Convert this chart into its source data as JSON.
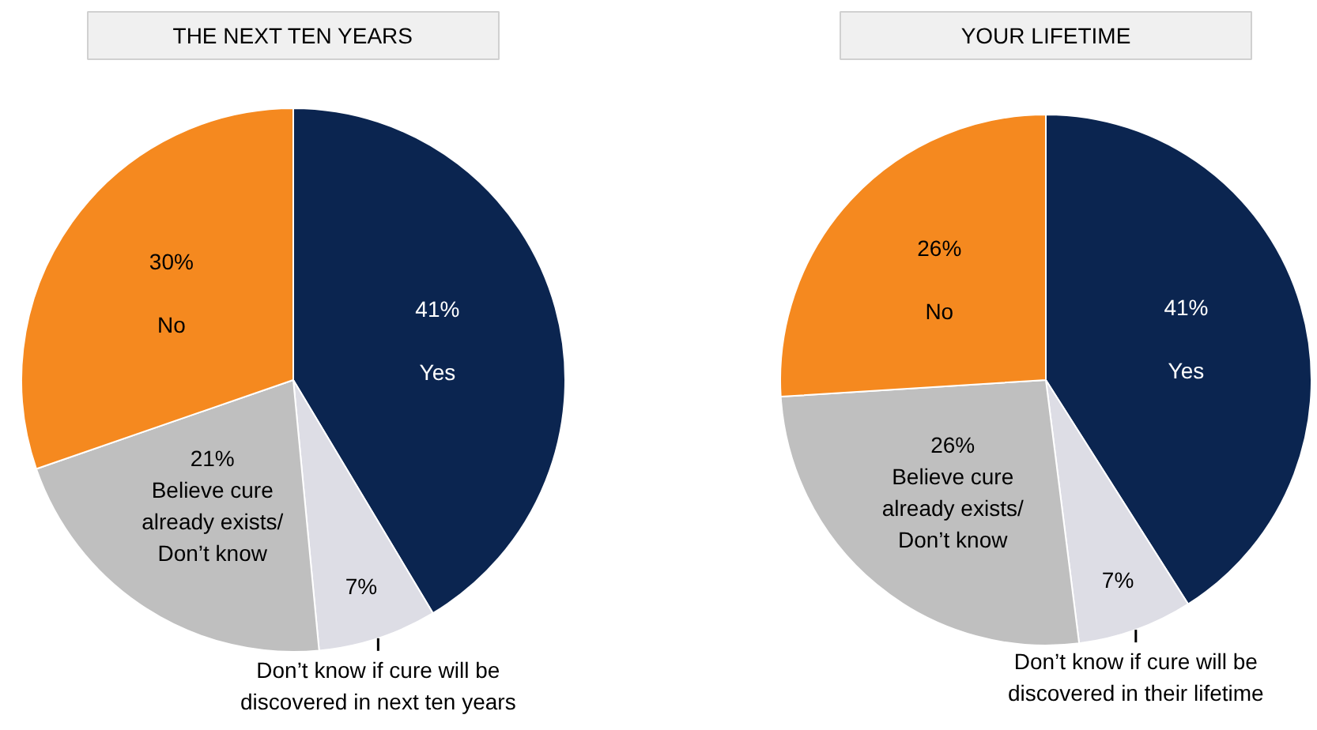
{
  "chart_data": [
    {
      "type": "pie",
      "title": "THE NEXT TEN YEARS",
      "categories": [
        "Yes",
        "Don’t know if cure will be discovered in next ten years",
        "Believe cure already exists/ Don’t know",
        "No"
      ],
      "values": [
        41,
        7,
        21,
        30
      ],
      "colors": [
        "#0b2550",
        "#dddde5",
        "#bfbfbf",
        "#f5891f"
      ],
      "value_labels": [
        "41%",
        "7%",
        "21%",
        "30%"
      ]
    },
    {
      "type": "pie",
      "title": "YOUR LIFETIME",
      "categories": [
        "Yes",
        "Don’t know if cure will be discovered in their lifetime",
        "Believe cure already exists/ Don’t know",
        "No"
      ],
      "values": [
        41,
        7,
        26,
        26
      ],
      "colors": [
        "#0b2550",
        "#dddde5",
        "#bfbfbf",
        "#f5891f"
      ],
      "value_labels": [
        "41%",
        "7%",
        "26%",
        "26%"
      ]
    }
  ]
}
